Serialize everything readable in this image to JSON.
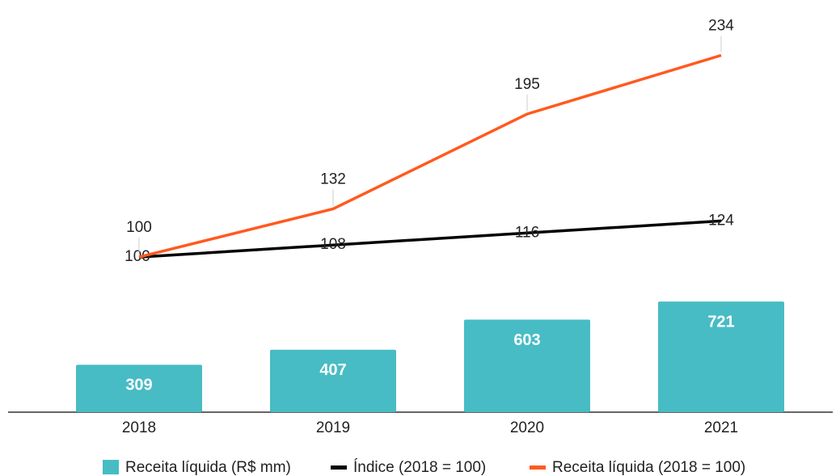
{
  "chart_data": {
    "type": "combo",
    "categories": [
      "2018",
      "2019",
      "2020",
      "2021"
    ],
    "series": [
      {
        "name": "Receita líquida (R$ mm)",
        "type": "bar",
        "color": "#47bcc4",
        "values": [
          309,
          407,
          603,
          721
        ]
      },
      {
        "name": "Índice (2018 = 100)",
        "type": "line",
        "axis": "y2",
        "color": "#000000",
        "values": [
          100,
          108,
          116,
          124
        ]
      },
      {
        "name": "Receita líquida (2018 = 100)",
        "type": "line",
        "axis": "y2",
        "color": "#ff5a1f",
        "values": [
          100,
          132,
          195,
          234
        ]
      }
    ],
    "ylim": [
      0,
      2580
    ],
    "y2lim": [
      -3,
      260
    ],
    "legend": "bottom"
  }
}
